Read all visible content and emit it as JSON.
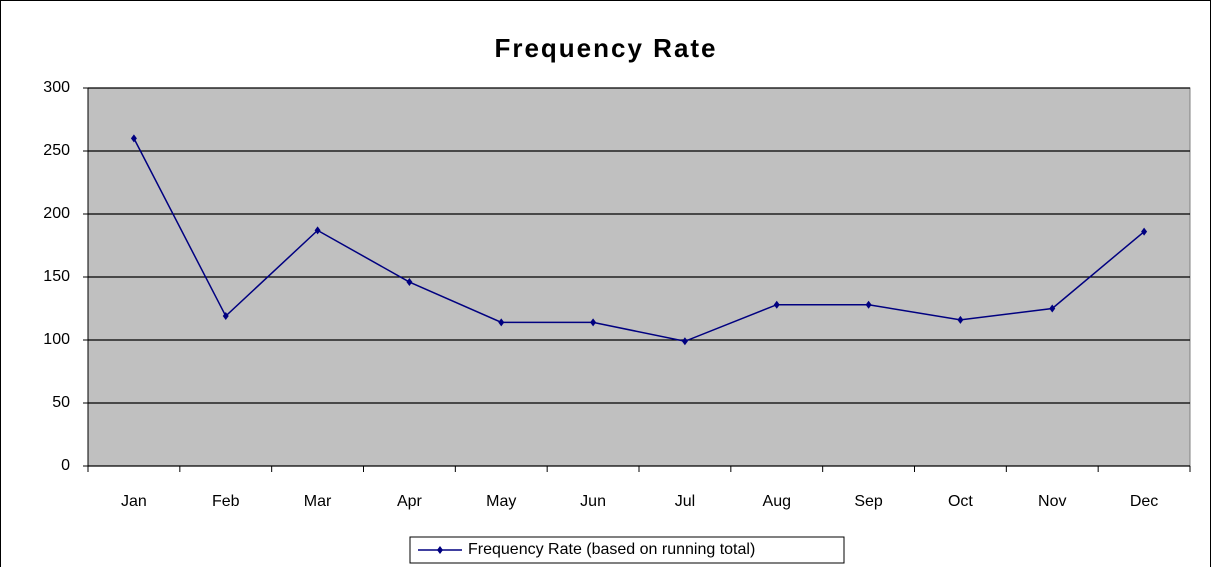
{
  "chart_data": {
    "type": "line",
    "title": "Frequency Rate",
    "categories": [
      "Jan",
      "Feb",
      "Mar",
      "Apr",
      "May",
      "Jun",
      "Jul",
      "Aug",
      "Sep",
      "Oct",
      "Nov",
      "Dec"
    ],
    "series": [
      {
        "name": "Frequency Rate (based on running total)",
        "color": "#000080",
        "values": [
          260,
          119,
          187,
          146,
          114,
          114,
          99,
          128,
          128,
          116,
          125,
          186
        ]
      }
    ],
    "ylim": [
      0,
      300
    ],
    "yticks": [
      0,
      50,
      100,
      150,
      200,
      250,
      300
    ],
    "grid": true,
    "legend": "bottom"
  }
}
